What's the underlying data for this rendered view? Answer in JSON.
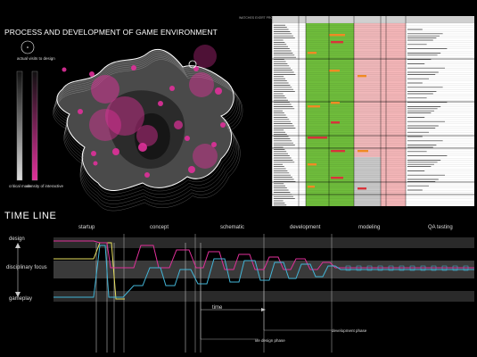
{
  "environment": {
    "title": "PROCESS AND DEVELOPMENT OF GAME ENVIRONMENT",
    "legend_circle_label": "actual visits to design",
    "bar_labels": [
      "critical mass",
      "density of interactive"
    ],
    "colors": {
      "accent": "#e0309a",
      "blob": "#4a4a4a",
      "outline": "#ffffff"
    }
  },
  "table": {
    "header_note": "WATCHES EXERT PROCESSINGS",
    "colors": {
      "green": "#6fbd3c",
      "orange": "#f08a24",
      "red": "#d8333a",
      "pink": "#f4b6b8",
      "grey": "#c8c8c8"
    }
  },
  "timeline": {
    "title": "TIME LINE",
    "phases": [
      "startup",
      "concept",
      "schematic",
      "development",
      "modeling",
      "QA testing"
    ],
    "y_labels": {
      "top": "design",
      "middle": "disciplinary focus",
      "bottom": "gameplay"
    },
    "axis_label": "time",
    "notes": [
      "life design phase",
      "development phase"
    ],
    "colors": {
      "pink": "#e0309a",
      "cyan": "#43b6d8",
      "yellow": "#e8e060",
      "bands": "#2a2a2a"
    }
  }
}
